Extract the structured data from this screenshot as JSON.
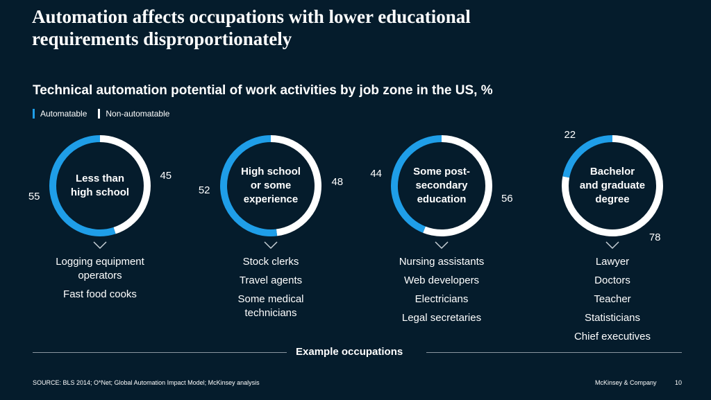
{
  "headline": [
    "Automation affects occupations with lower educational",
    "requirements disproportionately"
  ],
  "colors": {
    "automatable": "#1f9ee8",
    "non_automatable": "#ffffff",
    "background": "#051c2c"
  },
  "chart_data": {
    "type": "donut",
    "title": "Technical automation potential of work activities by job zone in the US, %",
    "legend": [
      "Automatable",
      "Non-automatable"
    ],
    "legend_placement": "top-left",
    "categories": [
      [
        "Less than",
        "high school"
      ],
      [
        "High school",
        "or some",
        "experience"
      ],
      [
        "Some post-",
        "secondary",
        "education"
      ],
      [
        "Bachelor",
        "and graduate",
        "degree"
      ]
    ],
    "series": [
      {
        "name": "Automatable",
        "values": [
          55,
          52,
          44,
          22
        ]
      },
      {
        "name": "Non-automatable",
        "values": [
          45,
          48,
          56,
          78
        ]
      }
    ],
    "occupations": [
      [
        [
          "Logging equipment",
          "operators"
        ],
        [
          "Fast food cooks"
        ]
      ],
      [
        [
          "Stock clerks"
        ],
        [
          "Travel agents"
        ],
        [
          "Some medical",
          "technicians"
        ]
      ],
      [
        [
          "Nursing assistants"
        ],
        [
          "Web developers"
        ],
        [
          "Electricians"
        ],
        [
          "Legal secretaries"
        ]
      ],
      [
        [
          "Lawyer"
        ],
        [
          "Doctors"
        ],
        [
          "Teacher"
        ],
        [
          "Statisticians"
        ],
        [
          "Chief executives"
        ]
      ]
    ],
    "occupations_label": "Example occupations"
  },
  "footer": {
    "source": "SOURCE: BLS 2014; O*Net; Global Automation Impact Model; McKinsey analysis",
    "brand": "McKinsey & Company",
    "page": "10"
  }
}
